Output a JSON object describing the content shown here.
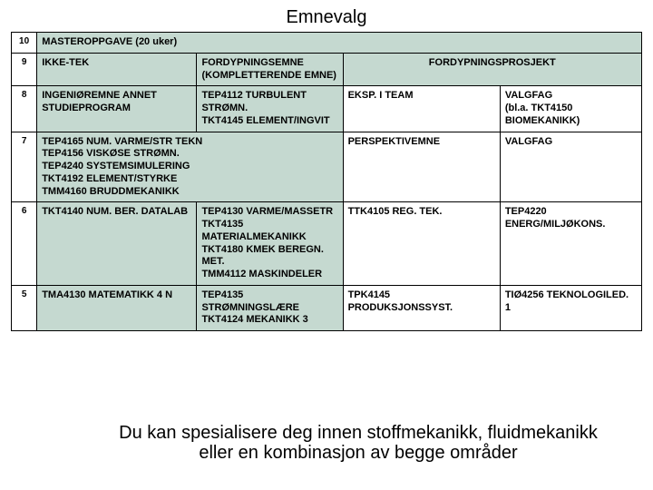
{
  "title": "Emnevalg",
  "colors": {
    "cell_bg": "#c5d9d0",
    "border": "#000000",
    "text": "#000000",
    "page_bg": "#ffffff"
  },
  "font": {
    "title_size": 20,
    "cell_size": 11,
    "cell_weight": "bold"
  },
  "rows": [
    {
      "num": "10",
      "cells": [
        {
          "colspan": 4,
          "fill": true,
          "text": "MASTEROPPGAVE (20 uker)"
        }
      ]
    },
    {
      "num": "9",
      "cells": [
        {
          "fill": true,
          "text": "IKKE-TEK"
        },
        {
          "fill": true,
          "text": "FORDYPNINGSEMNE (KOMPLETTERENDE EMNE)"
        },
        {
          "colspan": 2,
          "fill": true,
          "text": "FORDYPNINGSPROSJEKT",
          "align": "center"
        }
      ]
    },
    {
      "num": "8",
      "cells": [
        {
          "fill": true,
          "text": "INGENIØREMNE ANNET STUDIEPROGRAM"
        },
        {
          "fill": true,
          "text": "TEP4112 TURBULENT STRØMN.\nTKT4145 ELEMENT/INGVIT"
        },
        {
          "fill": false,
          "text": "EKSP. I TEAM"
        },
        {
          "fill": false,
          "text": "VALGFAG\n(bl.a. TKT4150 BIOMEKANIKK)"
        }
      ]
    },
    {
      "num": "7",
      "cells": [
        {
          "colspan": 2,
          "fill": true,
          "text": "TEP4165 NUM. VARME/STR TEKN\nTEP4156 VISKØSE STRØMN.\nTEP4240 SYSTEMSIMULERING\nTKT4192 ELEMENT/STYRKE\nTMM4160 BRUDDMEKANIKK"
        },
        {
          "fill": false,
          "text": "PERSPEKTIVEMNE"
        },
        {
          "fill": false,
          "text": "VALGFAG"
        }
      ]
    },
    {
      "num": "6",
      "cells": [
        {
          "fill": true,
          "text": "TKT4140 NUM. BER. DATALAB"
        },
        {
          "fill": true,
          "text": "TEP4130 VARME/MASSETR\nTKT4135 MATERIALMEKANIKK\nTKT4180 KMEK BEREGN. MET.\nTMM4112 MASKINDELER"
        },
        {
          "fill": false,
          "text": "TTK4105 REG. TEK."
        },
        {
          "fill": false,
          "text": "TEP4220 ENERG/MILJØKONS."
        }
      ]
    },
    {
      "num": "5",
      "cells": [
        {
          "fill": true,
          "text": "TMA4130 MATEMATIKK 4 N"
        },
        {
          "fill": true,
          "text": "TEP4135 STRØMNINGSLÆRE\nTKT4124 MEKANIKK 3"
        },
        {
          "fill": false,
          "text": "TPK4145 PRODUKSJONSSYST."
        },
        {
          "fill": false,
          "text": "TIØ4256 TEKNOLOGILED. 1"
        }
      ]
    }
  ],
  "overlay": {
    "line1": "Du kan spesialisere deg innen stoffmekanikk, fluidmekanikk",
    "line2": "eller en kombinasjon av begge områder"
  }
}
